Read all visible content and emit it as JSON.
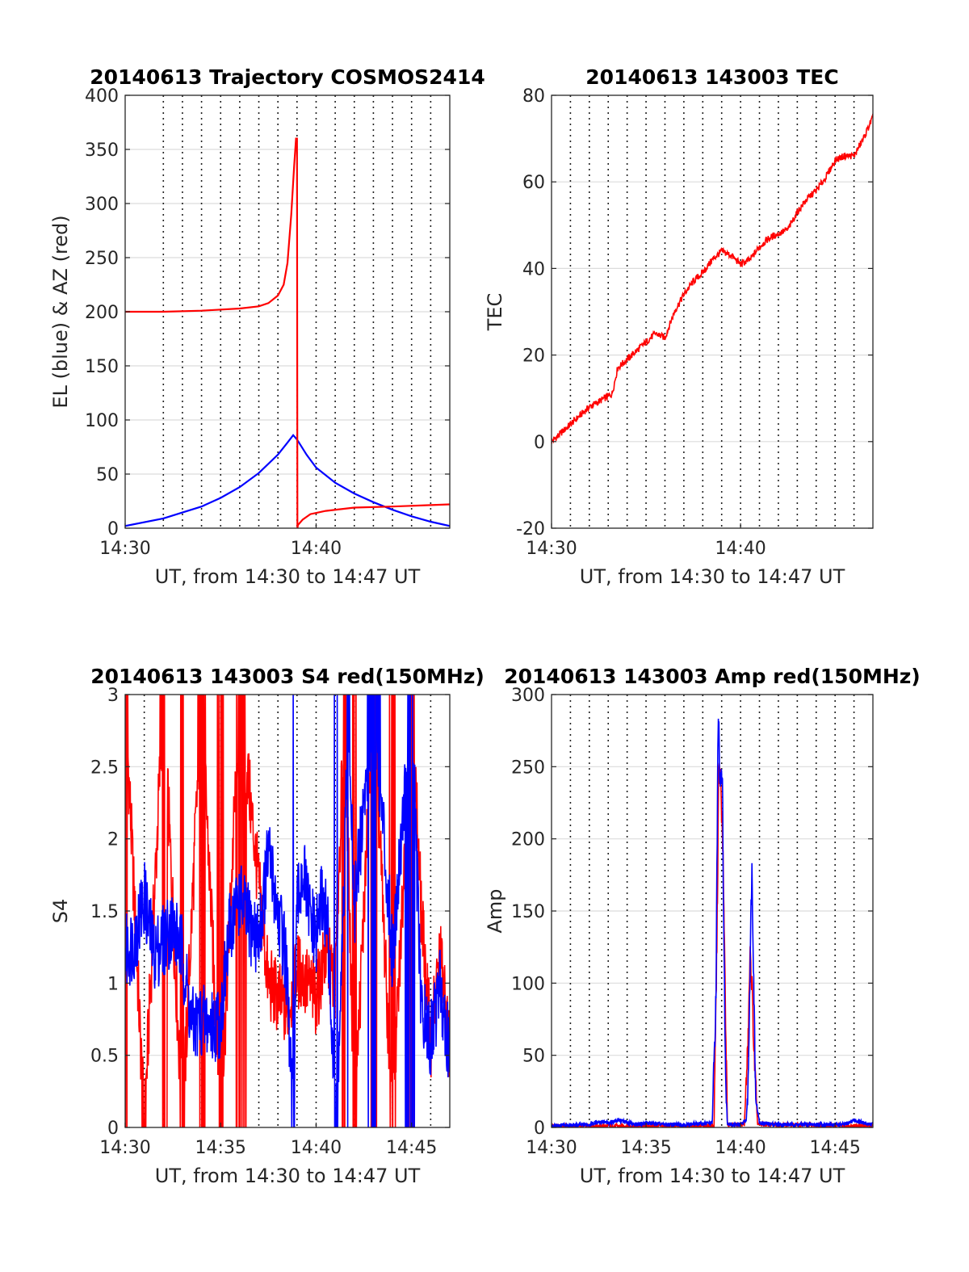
{
  "chart_data": [
    {
      "id": "trajectory",
      "type": "line",
      "title": "20140613 Trajectory COSMOS2414",
      "xlabel": "UT, from 14:30 to 14:47 UT",
      "ylabel": "EL (blue) & AZ (red)",
      "xlim": [
        0,
        17
      ],
      "ylim": [
        0,
        400
      ],
      "x_unit": "minutes after 14:30 UT",
      "x_ticks": [
        0,
        10
      ],
      "x_tick_labels": [
        "14:30",
        "14:40"
      ],
      "y_ticks": [
        0,
        50,
        100,
        150,
        200,
        250,
        300,
        350,
        400
      ],
      "y_tick_labels": [
        "0",
        "50",
        "100",
        "150",
        "200",
        "250",
        "300",
        "350",
        "400"
      ],
      "minor_dotted_x": [
        2,
        3,
        4,
        5,
        6,
        7,
        8,
        9,
        11,
        12,
        13,
        14,
        15,
        16
      ],
      "grid": true,
      "series": [
        {
          "color": "#0000ff",
          "x": [
            0,
            2,
            4,
            5,
            6,
            7,
            8,
            8.5,
            8.8,
            9,
            9.5,
            10,
            11,
            12,
            13,
            14,
            15,
            16,
            17
          ],
          "y": [
            2,
            9,
            20,
            28,
            38,
            51,
            68,
            79,
            86,
            82,
            68,
            56,
            42,
            32,
            24,
            17,
            11,
            6,
            2
          ]
        },
        {
          "color": "#ff0000",
          "x": [
            0,
            2,
            4,
            6,
            7,
            7.5,
            8,
            8.3,
            8.5,
            8.7,
            8.85,
            8.95,
            9.0,
            9.02,
            9.05,
            9.3,
            9.7,
            10.5,
            12,
            14,
            17
          ],
          "y": [
            200,
            200,
            201,
            203,
            205,
            208,
            215,
            225,
            245,
            290,
            335,
            360,
            360,
            0,
            3,
            8,
            13,
            16,
            19,
            20,
            22
          ]
        }
      ]
    },
    {
      "id": "tec",
      "type": "line",
      "title": "20140613 143003 TEC",
      "xlabel": "UT, from 14:30 to 14:47 UT",
      "ylabel": "TEC",
      "xlim": [
        0,
        17
      ],
      "ylim": [
        -20,
        80
      ],
      "x_unit": "minutes after 14:30 UT",
      "x_ticks": [
        0,
        10
      ],
      "x_tick_labels": [
        "14:30",
        "14:40"
      ],
      "y_ticks": [
        -20,
        0,
        20,
        40,
        60,
        80
      ],
      "y_tick_labels": [
        "-20",
        "0",
        "20",
        "40",
        "60",
        "80"
      ],
      "minor_dotted_x": [
        1,
        2,
        3,
        4,
        5,
        6,
        7,
        8,
        9,
        11,
        12,
        13,
        14,
        15,
        16
      ],
      "grid": true,
      "series": [
        {
          "color": "#ff0000",
          "x": [
            0,
            1,
            2,
            2.8,
            3.2,
            3.5,
            4,
            4.5,
            5,
            5.5,
            6,
            6.5,
            7,
            7.5,
            8,
            8.5,
            9,
            9.5,
            10,
            10.5,
            11,
            11.5,
            12,
            12.5,
            13,
            13.5,
            14,
            14.5,
            15,
            15.5,
            16,
            16.5,
            17
          ],
          "y": [
            0,
            4,
            8,
            10,
            11,
            17,
            19,
            21,
            23,
            25,
            24,
            30,
            34,
            37,
            39,
            42,
            44,
            43,
            41,
            42,
            45,
            47,
            48,
            49,
            53,
            56,
            58,
            61,
            65,
            66,
            66,
            70,
            75
          ]
        }
      ]
    },
    {
      "id": "s4",
      "type": "line",
      "title": "20140613 143003 S4 red(150MHz)",
      "xlabel": "UT, from 14:30 to 14:47 UT",
      "ylabel": "S4",
      "xlim": [
        0,
        17
      ],
      "ylim": [
        0,
        3
      ],
      "x_unit": "minutes after 14:30 UT",
      "x_ticks": [
        0,
        5,
        10,
        15
      ],
      "x_tick_labels": [
        "14:30",
        "14:35",
        "14:40",
        "14:45"
      ],
      "y_ticks": [
        0,
        0.5,
        1,
        1.5,
        2,
        2.5,
        3
      ],
      "y_tick_labels": [
        "0",
        "0.5",
        "1",
        "1.5",
        "2",
        "2.5",
        "3"
      ],
      "minor_dotted_x": [
        1,
        2,
        3,
        4,
        6,
        7,
        8,
        9,
        11,
        12,
        13,
        14,
        16
      ],
      "grid": true,
      "series": [
        {
          "color": "#ff0000",
          "x": [
            0,
            1,
            2,
            3,
            4,
            5,
            6,
            7.5,
            8,
            8.5,
            9,
            9.5,
            10,
            10.5,
            11,
            11.5,
            12,
            13,
            14,
            15,
            15.5,
            16,
            16.5,
            17
          ],
          "y": [
            3,
            0,
            3,
            0,
            3,
            0,
            3,
            1.0,
            0.9,
            0.8,
            1.1,
            1.0,
            0.9,
            1.2,
            1.0,
            3,
            0,
            3,
            0,
            3,
            1.5,
            0.6,
            1.2,
            0.5
          ]
        },
        {
          "color": "#0000ff",
          "x": [
            0,
            0.5,
            1,
            1.5,
            2,
            2.5,
            3,
            3.5,
            4,
            4.5,
            5,
            5.5,
            6,
            6.5,
            7,
            7.5,
            8,
            8.4,
            8.6,
            8.8,
            9,
            9.3,
            9.6,
            10,
            10.3,
            10.6,
            10.9,
            11.1,
            11.4,
            11.7,
            12,
            13,
            14,
            15,
            15.5,
            16,
            16.5,
            17
          ],
          "y": [
            1.2,
            1.3,
            1.6,
            1.2,
            1.3,
            1.4,
            1.2,
            0.7,
            0.75,
            0.7,
            0.75,
            1.4,
            1.6,
            1.4,
            1.3,
            1.9,
            1.5,
            1.2,
            0.6,
            0.1,
            1.5,
            1.8,
            1.5,
            1.3,
            1.6,
            1.4,
            0.4,
            0.2,
            1.3,
            3,
            1.5,
            3,
            1.2,
            3,
            0.8,
            0.6,
            1.0,
            0.5
          ]
        }
      ]
    },
    {
      "id": "amp",
      "type": "line",
      "title": "20140613 143003 Amp red(150MHz)",
      "xlabel": "UT, from 14:30 to 14:47 UT",
      "ylabel": "Amp",
      "xlim": [
        0,
        17
      ],
      "ylim": [
        0,
        300
      ],
      "x_unit": "minutes after 14:30 UT",
      "x_ticks": [
        0,
        5,
        10,
        15
      ],
      "x_tick_labels": [
        "14:30",
        "14:35",
        "14:40",
        "14:45"
      ],
      "y_ticks": [
        0,
        50,
        100,
        150,
        200,
        250,
        300
      ],
      "y_tick_labels": [
        "0",
        "50",
        "100",
        "150",
        "200",
        "250",
        "300"
      ],
      "minor_dotted_x": [
        1,
        2,
        3,
        4,
        6,
        7,
        8,
        9,
        11,
        12,
        13,
        14,
        16
      ],
      "grid": true,
      "series": [
        {
          "color": "#ff0000",
          "x": [
            0,
            8.6,
            8.75,
            8.85,
            8.95,
            9.1,
            9.3,
            10.2,
            10.4,
            10.5,
            10.6,
            10.7,
            10.9,
            17
          ],
          "y": [
            1,
            1,
            130,
            250,
            240,
            170,
            2,
            2,
            60,
            120,
            100,
            55,
            2,
            1
          ]
        },
        {
          "color": "#0000ff",
          "x": [
            0,
            2,
            2.5,
            3,
            3.5,
            4.5,
            5,
            6,
            7,
            8.5,
            8.7,
            8.8,
            8.85,
            8.9,
            9.0,
            9.05,
            9.1,
            9.2,
            9.3,
            9.5,
            10.0,
            10.3,
            10.4,
            10.5,
            10.55,
            10.6,
            10.7,
            10.8,
            11.0,
            12,
            14,
            15.5,
            16,
            16.5,
            17
          ],
          "y": [
            1,
            2,
            4,
            3,
            5,
            2,
            3,
            2,
            2,
            3,
            90,
            270,
            285,
            240,
            250,
            230,
            150,
            40,
            3,
            2,
            2,
            5,
            30,
            110,
            150,
            180,
            100,
            20,
            3,
            2,
            2,
            2,
            5,
            3,
            2
          ]
        }
      ]
    }
  ]
}
